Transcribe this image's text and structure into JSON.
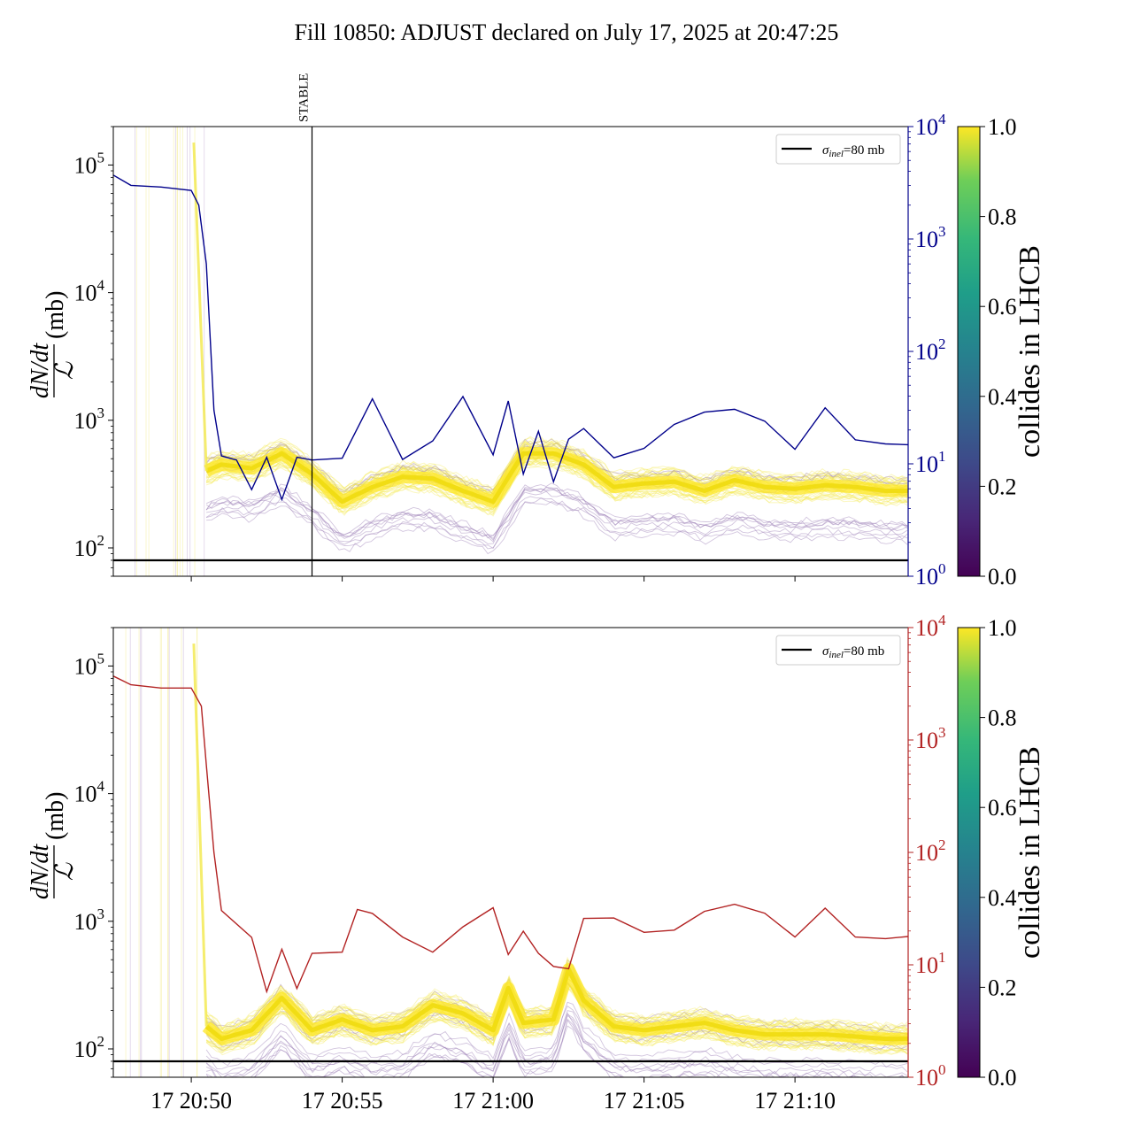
{
  "title": "Fill 10850: ADJUST declared on July 17, 2025 at 20:47:25",
  "chart_data": [
    {
      "type": "line",
      "panel": "top",
      "ylabel": "dN/dt / ℒ (mb)",
      "ylabel_parts": {
        "num": "dN/dt",
        "den": "ℒ",
        "unit": "(mb)"
      },
      "yscale": "log",
      "ylim": [
        60,
        200000
      ],
      "y_ticks": [
        {
          "base": "10",
          "exp": "2",
          "value": 100
        },
        {
          "base": "10",
          "exp": "3",
          "value": 1000
        },
        {
          "base": "10",
          "exp": "4",
          "value": 10000
        },
        {
          "base": "10",
          "exp": "5",
          "value": 100000
        }
      ],
      "xlim_minutes": [
        "20:47:25",
        "21:13:45"
      ],
      "x_ticks": [],
      "secondary_axis": {
        "scale": "log",
        "ylim": [
          1,
          10000
        ],
        "color": "#00008b",
        "ticks": [
          {
            "base": "10",
            "exp": "0",
            "value": 1
          },
          {
            "base": "10",
            "exp": "1",
            "value": 10
          },
          {
            "base": "10",
            "exp": "2",
            "value": 100
          },
          {
            "base": "10",
            "exp": "3",
            "value": 1000
          },
          {
            "base": "10",
            "exp": "4",
            "value": 10000
          }
        ]
      },
      "vline": {
        "x": "20:54:00",
        "label": "STABLE"
      },
      "hline": {
        "y": 80,
        "label_sym": "σ",
        "label_sub": "inel",
        "label_rest": "=80 mb"
      },
      "legend_position": "top-right",
      "series_secondary": {
        "color": "#00008b",
        "x": [
          "20:47:25",
          "20:48:00",
          "20:49:00",
          "20:50:00",
          "20:50:15",
          "20:50:30",
          "20:50:45",
          "20:51:00",
          "20:51:30",
          "20:52:00",
          "20:52:30",
          "20:53:00",
          "20:53:30",
          "20:54:00",
          "20:55:00",
          "20:56:00",
          "20:57:00",
          "20:58:00",
          "20:59:00",
          "21:00:00",
          "21:00:30",
          "21:01:00",
          "21:01:30",
          "21:02:00",
          "21:02:30",
          "21:03:00",
          "21:04:00",
          "21:05:00",
          "21:06:00",
          "21:07:00",
          "21:08:00",
          "21:09:00",
          "21:10:00",
          "21:11:00",
          "21:12:00",
          "21:13:00",
          "21:13:45"
        ],
        "values": [
          3700,
          3000,
          2900,
          2700,
          2000,
          600,
          30,
          12,
          11,
          6,
          11,
          5,
          11,
          11,
          11,
          38,
          11,
          16,
          40,
          12,
          35,
          8,
          20,
          7,
          16,
          20,
          11,
          14,
          22,
          30,
          30,
          24,
          14,
          32,
          16,
          15,
          15
        ]
      },
      "band_primary": {
        "colorscale_value": 1.0,
        "x": [
          "20:50:30",
          "20:51:00",
          "20:52:00",
          "20:53:00",
          "20:54:00",
          "20:55:00",
          "20:56:00",
          "20:57:00",
          "20:58:00",
          "20:59:00",
          "21:00:00",
          "21:01:00",
          "21:02:00",
          "21:03:00",
          "21:04:00",
          "21:05:00",
          "21:06:00",
          "21:07:00",
          "21:08:00",
          "21:09:00",
          "21:10:00",
          "21:11:00",
          "21:12:00",
          "21:13:00",
          "21:13:45"
        ],
        "values": [
          400,
          450,
          420,
          550,
          380,
          230,
          300,
          360,
          350,
          280,
          230,
          550,
          550,
          450,
          300,
          320,
          330,
          280,
          340,
          300,
          290,
          310,
          300,
          280,
          280
        ]
      },
      "colorbar": {
        "label": "collides in LHCB",
        "ticks": [
          "0.0",
          "0.2",
          "0.4",
          "0.6",
          "0.8",
          "1.0"
        ]
      }
    },
    {
      "type": "line",
      "panel": "bottom",
      "ylabel": "dN/dt / ℒ (mb)",
      "ylabel_parts": {
        "num": "dN/dt",
        "den": "ℒ",
        "unit": "(mb)"
      },
      "yscale": "log",
      "ylim": [
        60,
        200000
      ],
      "y_ticks": [
        {
          "base": "10",
          "exp": "2",
          "value": 100
        },
        {
          "base": "10",
          "exp": "3",
          "value": 1000
        },
        {
          "base": "10",
          "exp": "4",
          "value": 10000
        },
        {
          "base": "10",
          "exp": "5",
          "value": 100000
        }
      ],
      "xlim_minutes": [
        "20:47:25",
        "21:13:45"
      ],
      "x_ticks": [
        {
          "label": "17 20:50",
          "t": "20:50:00"
        },
        {
          "label": "17 20:55",
          "t": "20:55:00"
        },
        {
          "label": "17 21:00",
          "t": "21:00:00"
        },
        {
          "label": "17 21:05",
          "t": "21:05:00"
        },
        {
          "label": "17 21:10",
          "t": "21:10:00"
        }
      ],
      "secondary_axis": {
        "scale": "log",
        "ylim": [
          1,
          10000
        ],
        "color": "#b22222",
        "ticks": [
          {
            "base": "10",
            "exp": "0",
            "value": 1
          },
          {
            "base": "10",
            "exp": "1",
            "value": 10
          },
          {
            "base": "10",
            "exp": "2",
            "value": 100
          },
          {
            "base": "10",
            "exp": "3",
            "value": 1000
          },
          {
            "base": "10",
            "exp": "4",
            "value": 10000
          }
        ]
      },
      "hline": {
        "y": 80,
        "label_sym": "σ",
        "label_sub": "inel",
        "label_rest": "=80 mb"
      },
      "legend_position": "top-right",
      "series_secondary": {
        "color": "#b22222",
        "x": [
          "20:47:25",
          "20:48:00",
          "20:49:00",
          "20:50:00",
          "20:50:20",
          "20:50:30",
          "20:50:45",
          "20:51:00",
          "20:52:00",
          "20:52:30",
          "20:53:00",
          "20:53:30",
          "20:54:00",
          "20:55:00",
          "20:55:30",
          "20:56:00",
          "20:57:00",
          "20:58:00",
          "20:59:00",
          "21:00:00",
          "21:00:30",
          "21:01:00",
          "21:01:30",
          "21:02:00",
          "21:02:30",
          "21:03:00",
          "21:04:00",
          "21:05:00",
          "21:06:00",
          "21:07:00",
          "21:08:00",
          "21:09:00",
          "21:10:00",
          "21:11:00",
          "21:12:00",
          "21:13:00",
          "21:13:45"
        ],
        "values": [
          3700,
          3100,
          2900,
          2900,
          2000,
          600,
          100,
          30,
          17,
          6,
          14,
          6,
          13,
          13,
          30,
          28,
          18,
          13,
          22,
          33,
          12,
          20,
          13,
          10,
          9,
          25,
          27,
          20,
          20,
          30,
          35,
          28,
          17,
          32,
          18,
          17,
          18
        ]
      },
      "band_primary": {
        "colorscale_value": 1.0,
        "x": [
          "20:50:30",
          "20:51:00",
          "20:52:00",
          "20:53:00",
          "20:54:00",
          "20:55:00",
          "20:56:00",
          "20:57:00",
          "20:58:00",
          "20:59:00",
          "21:00:00",
          "21:00:30",
          "21:01:00",
          "21:02:00",
          "21:02:30",
          "21:03:00",
          "21:04:00",
          "21:05:00",
          "21:06:00",
          "21:07:00",
          "21:08:00",
          "21:09:00",
          "21:10:00",
          "21:11:00",
          "21:12:00",
          "21:13:00",
          "21:13:45"
        ],
        "values": [
          150,
          120,
          140,
          250,
          140,
          170,
          140,
          150,
          220,
          190,
          140,
          300,
          160,
          170,
          420,
          240,
          150,
          140,
          150,
          160,
          140,
          130,
          130,
          130,
          125,
          120,
          120
        ]
      },
      "colorbar": {
        "label": "collides in LHCB",
        "ticks": [
          "0.0",
          "0.2",
          "0.4",
          "0.6",
          "0.8",
          "1.0"
        ]
      }
    }
  ]
}
